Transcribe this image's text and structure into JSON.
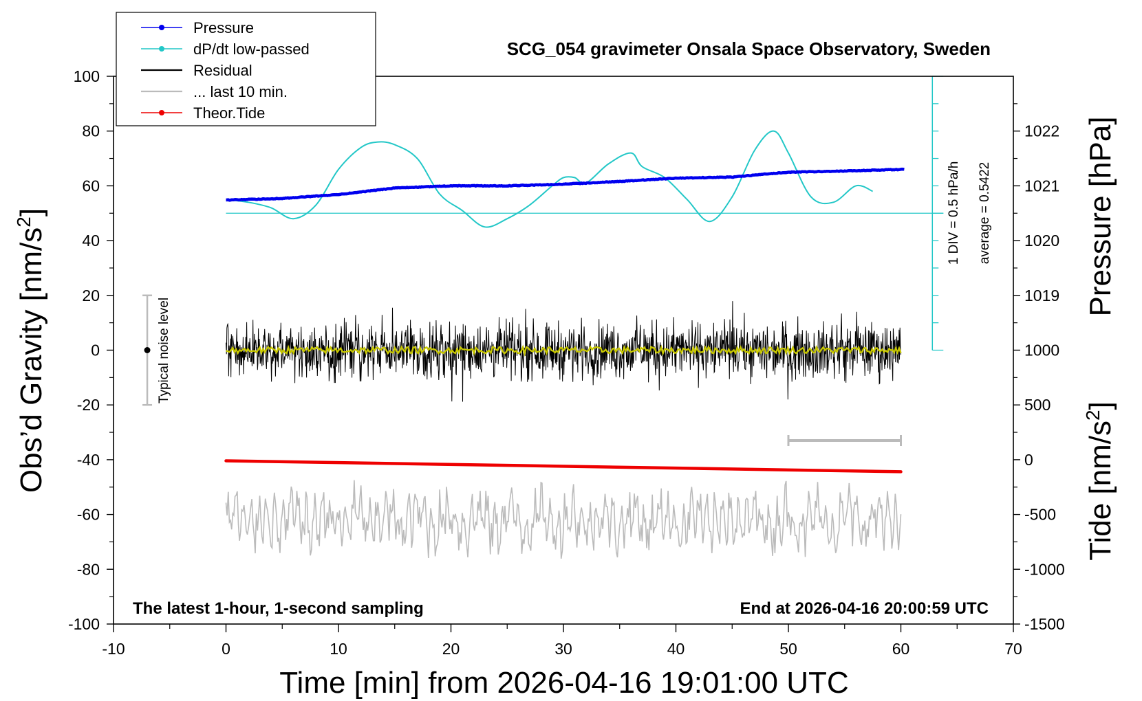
{
  "chart_data": {
    "type": "line",
    "title": "SCG_054 gravimeter Onsala Space Observatory, Sweden",
    "xlabel": "Time [min] from 2026-04-16 19:01:00 UTC",
    "ylabel_left_main": "Obs’d Gravity [nm/s",
    "ylabel_left_sup": "2",
    "ylabel_left_end": "]",
    "ylabel_right_top": "Pressure [hPa]",
    "ylabel_right_bottom_main": "Tide [nm/s",
    "ylabel_right_bottom_sup": "2",
    "ylabel_right_bottom_end": "]",
    "xlim": [
      -10,
      70
    ],
    "xticks": [
      -10,
      0,
      10,
      20,
      30,
      40,
      50,
      60,
      70
    ],
    "ylim": [
      -100,
      100
    ],
    "yticks": [
      -100,
      -80,
      -60,
      -40,
      -20,
      0,
      20,
      40,
      60,
      80,
      100
    ],
    "pressure_ticks": [
      1019,
      1020,
      1021,
      1022
    ],
    "pressure_axis": {
      "value_at_gravity_0": 1018.0,
      "hpa_per_nm": 0.05
    },
    "tide_ticks": [
      -1500,
      -1000,
      -500,
      0,
      500,
      1000
    ],
    "tide_axis": {
      "value_at_gravity_minus100": -1500,
      "nm_per_tide_unit": 0.04
    },
    "legend": [
      "Pressure",
      "dP/dt low-passed",
      "Residual",
      "... last 10 min.",
      "Theor.Tide"
    ],
    "legend_position": "top-left",
    "colors": {
      "pressure": "#0000ee",
      "dpdt": "#22c7c7",
      "residual": "#000000",
      "last10": "#bbbbbb",
      "residual_smooth": "#c8c800",
      "tide": "#ee0000",
      "noise": "#bbbbbb"
    },
    "series": [
      {
        "name": "Pressure",
        "unit": "hPa",
        "x": [
          0,
          5,
          10,
          15,
          20,
          25,
          30,
          35,
          40,
          45,
          50,
          55,
          60
        ],
        "values": [
          1020.74,
          1020.77,
          1020.84,
          1020.96,
          1021.0,
          1021.0,
          1021.03,
          1021.08,
          1021.14,
          1021.16,
          1021.25,
          1021.27,
          1021.3
        ]
      },
      {
        "name": "dP/dt low-passed",
        "unit": "nm/s2 plot scale",
        "x": [
          0,
          2,
          4,
          6,
          8,
          10,
          12,
          13.5,
          15,
          17,
          19,
          21,
          23,
          25,
          27,
          29,
          30,
          31,
          32,
          34,
          36,
          37,
          39,
          41,
          43,
          45,
          47,
          48.7,
          50,
          52,
          54,
          56,
          57.5
        ],
        "values": [
          55,
          54,
          52,
          48,
          53,
          66,
          74,
          76,
          75,
          70,
          57,
          51,
          45,
          48,
          53,
          60,
          63,
          63,
          61,
          68,
          72,
          67,
          63,
          55,
          47,
          56,
          73,
          80,
          72,
          56,
          54,
          60,
          58
        ]
      },
      {
        "name": "Theor.Tide",
        "unit": "nm/s2",
        "x": [
          0,
          60
        ],
        "values": [
          -10,
          -110
        ]
      }
    ],
    "residual_range": [
      -20,
      20
    ],
    "last10_center": -62,
    "last10_span_min": [
      50,
      60
    ],
    "dpdt_baseline": 50,
    "dpdt_axis_range": [
      0,
      100
    ],
    "dpdt_scale_note": "1 DIV = 0.5 hPa/h",
    "dpdt_average_note": "average = 0.5422",
    "noise_label": "Typical noise level",
    "noise_bar": {
      "x": -7,
      "range": [
        -20,
        20
      ]
    },
    "note_left": "The latest 1-hour, 1-second sampling",
    "note_right": "End at 2026-04-16 20:00:59 UTC",
    "grid": false
  }
}
